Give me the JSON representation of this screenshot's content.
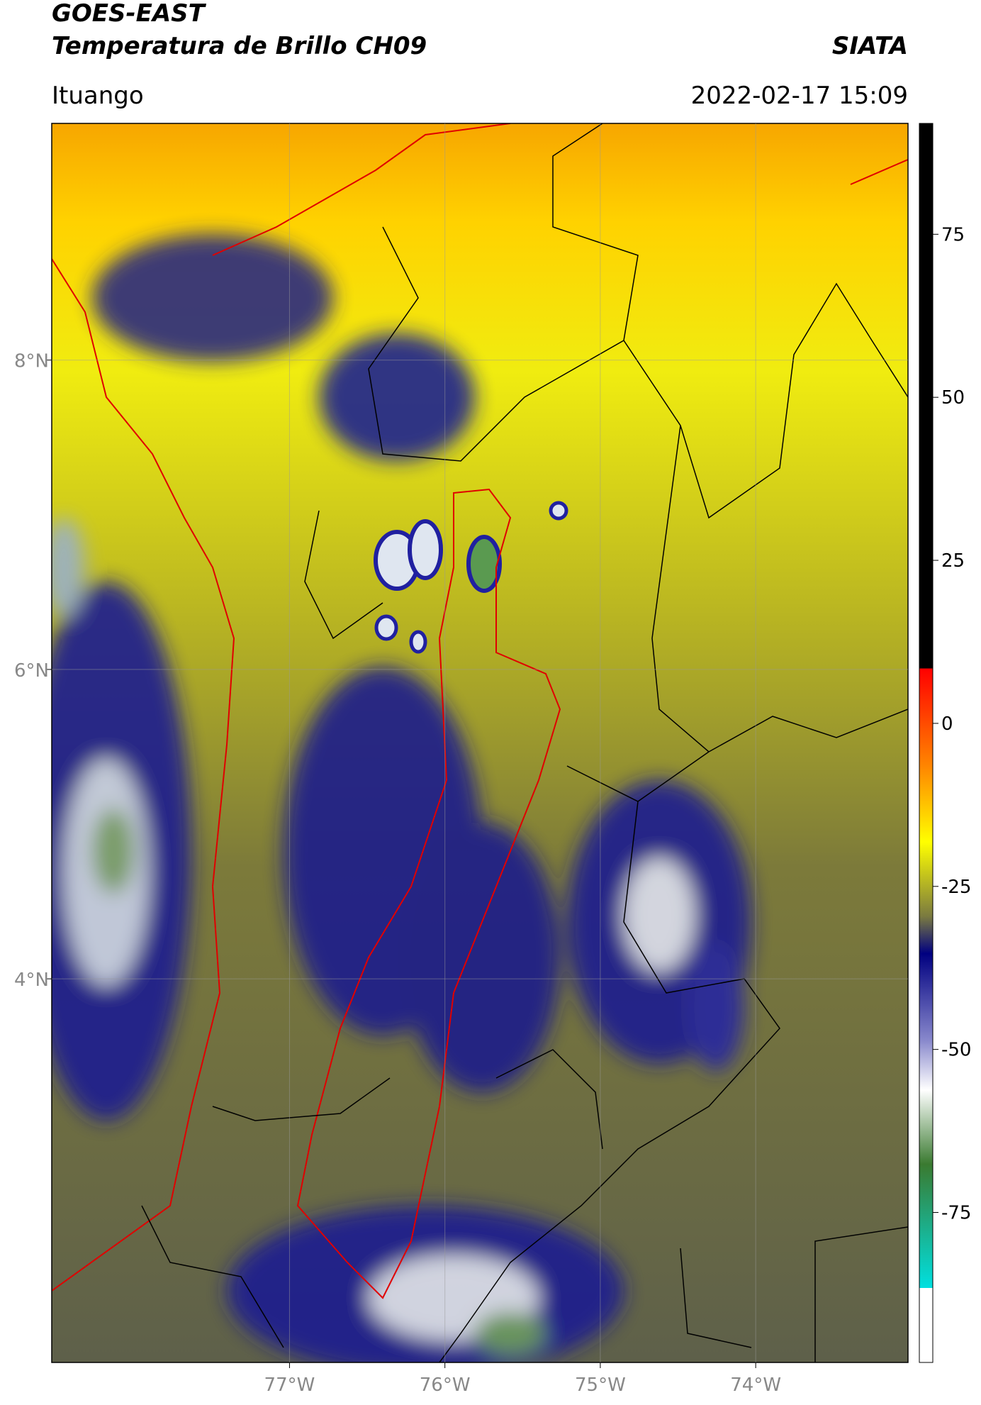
{
  "header": {
    "title": "GOES-EAST",
    "subtitle": "Temperatura de Brillo CH09",
    "source": "SIATA",
    "location": "Ituango",
    "datetime": "2022-02-17 15:09"
  },
  "map": {
    "xlim": [
      -78.53,
      -73.02
    ],
    "ylim": [
      1.52,
      9.53
    ],
    "xticks": [
      {
        "value": -77,
        "label": "77°W"
      },
      {
        "value": -76,
        "label": "76°W"
      },
      {
        "value": -75,
        "label": "75°W"
      },
      {
        "value": -74,
        "label": "74°W"
      }
    ],
    "yticks": [
      {
        "value": 8,
        "label": "8°N"
      },
      {
        "value": 6,
        "label": "6°N"
      },
      {
        "value": 4,
        "label": "4°N"
      }
    ],
    "grid": true
  },
  "colorbar": {
    "ylim": [
      -98,
      92
    ],
    "yticks": [
      75,
      50,
      25,
      0,
      -25,
      -50,
      -75
    ]
  }
}
